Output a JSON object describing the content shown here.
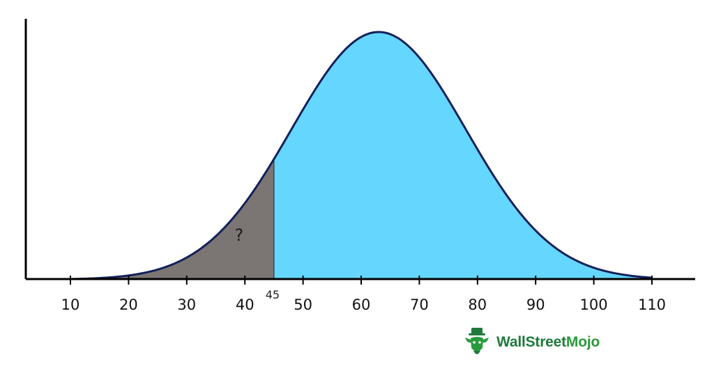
{
  "chart_data": {
    "type": "area",
    "distribution": "normal",
    "x_ticks": [
      10,
      20,
      30,
      40,
      50,
      60,
      70,
      80,
      90,
      100,
      110
    ],
    "xlim": [
      2,
      118
    ],
    "mean": 63,
    "std_dev": 15,
    "marker": {
      "value": 45,
      "label": "45"
    },
    "shaded_region": {
      "from": 10,
      "to": 45,
      "label": "?",
      "label_x": 39
    },
    "colors": {
      "left_fill": "#7b7674",
      "right_fill": "#65d6fd",
      "outline": "#12205a",
      "axis": "#000000"
    },
    "grid": false,
    "legend": "none"
  },
  "logo": {
    "part_a": "WallStreet",
    "part_b": "Mojo",
    "icon": "bull-mascot-icon"
  }
}
